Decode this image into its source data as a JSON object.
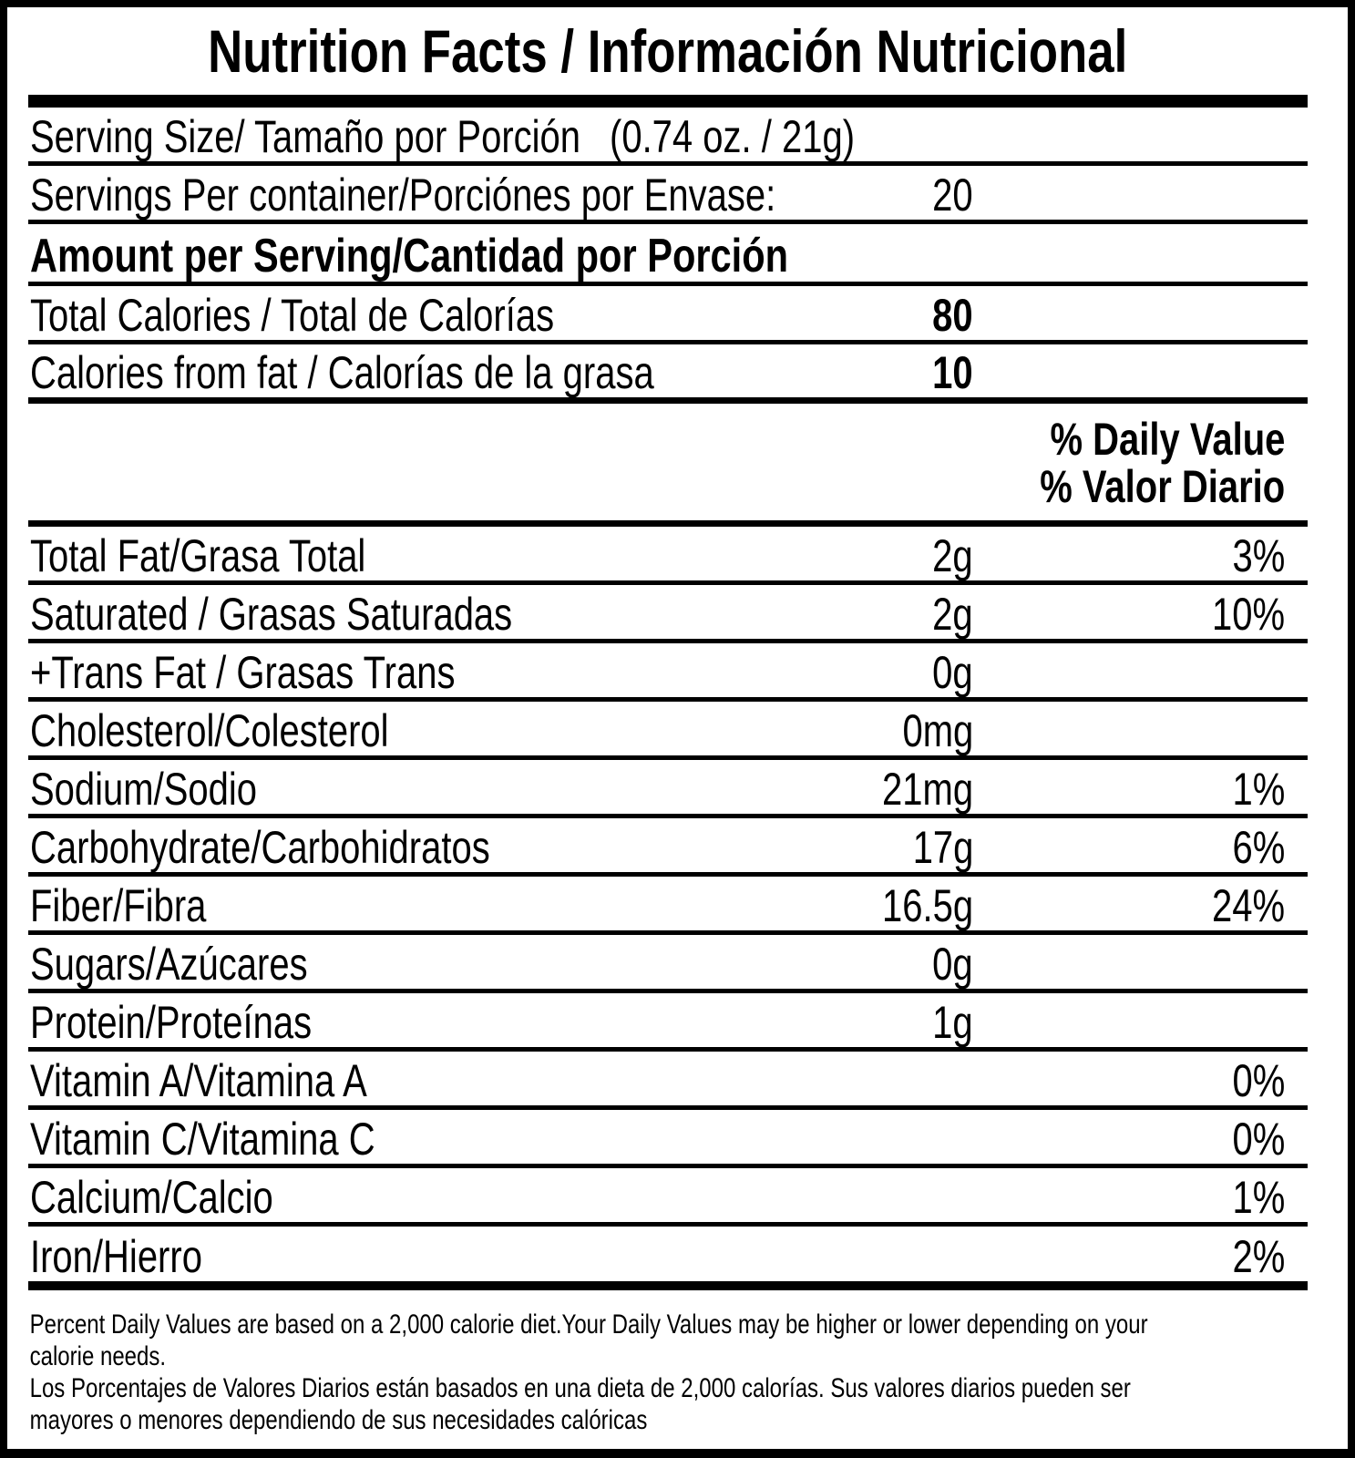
{
  "title": "Nutrition Facts / Información Nutricional",
  "serving": {
    "size_label": "Serving Size/ Tamaño por Porción",
    "size_value": "(0.74 oz. / 21g)",
    "per_container_label": "Servings Per container/Porciónes por Envase:",
    "per_container_value": "20"
  },
  "amount_header": "Amount per Serving/Cantidad por Porción",
  "calories": [
    {
      "label": "Total Calories / Total de Calorías",
      "value": "80"
    },
    {
      "label": "Calories from fat / Calorías de la grasa",
      "value": "10"
    }
  ],
  "daily_value_header": {
    "en": "% Daily Value",
    "es": "% Valor Diario"
  },
  "nutrients": [
    {
      "label": "Total Fat/Grasa Total",
      "amount": "2g",
      "dv": "3%"
    },
    {
      "label": "Saturated / Grasas Saturadas",
      "amount": "2g",
      "dv": "10%"
    },
    {
      "label": "+Trans Fat / Grasas Trans",
      "amount": "0g",
      "dv": ""
    },
    {
      "label": "Cholesterol/Colesterol",
      "amount": "0mg",
      "dv": ""
    },
    {
      "label": "Sodium/Sodio",
      "amount": "21mg",
      "dv": "1%"
    },
    {
      "label": "Carbohydrate/Carbohidratos",
      "amount": "17g",
      "dv": "6%"
    },
    {
      "label": "Fiber/Fibra",
      "amount": "16.5g",
      "dv": "24%"
    },
    {
      "label": "Sugars/Azúcares",
      "amount": "0g",
      "dv": ""
    },
    {
      "label": "Protein/Proteínas",
      "amount": "1g",
      "dv": ""
    },
    {
      "label": "Vitamin A/Vitamina A",
      "amount": "",
      "dv": "0%"
    },
    {
      "label": "Vitamin C/Vitamina C",
      "amount": "",
      "dv": "0%"
    },
    {
      "label": "Calcium/Calcio",
      "amount": "",
      "dv": "1%"
    },
    {
      "label": "Iron/Hierro",
      "amount": "",
      "dv": "2%"
    }
  ],
  "footnote": {
    "lines": [
      "Percent Daily Values are based on a 2,000 calorie diet.Your Daily Values may be higher or lower depending on your",
      "calorie needs.",
      "Los Porcentajes de Valores Diarios están basados en una dieta de 2,000 calorías. Sus valores diarios pueden ser",
      "mayores o menores dependiendo de sus necesidades calóricas"
    ]
  },
  "colors": {
    "text": "#000000",
    "background": "#ffffff"
  }
}
